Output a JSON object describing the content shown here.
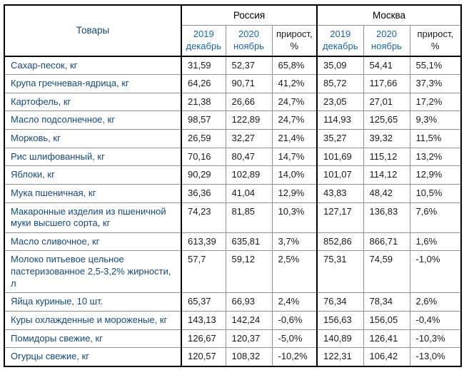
{
  "colors": {
    "product_text_blue": "#15497e",
    "subheader_blue": "#1c64a7",
    "number_text": "#1a1a1a",
    "border_dark": "#000000",
    "border_light": "#919191",
    "background": "#ffffff"
  },
  "chart_data": {
    "type": "table",
    "header": {
      "products_label": "Товары",
      "groups": [
        {
          "label": "Россия",
          "columns": [
            {
              "line1": "2019",
              "line2": "декабрь"
            },
            {
              "line1": "2020",
              "line2": "ноябрь"
            },
            {
              "line1": "прирост,",
              "line2": "%"
            }
          ]
        },
        {
          "label": "Москва",
          "columns": [
            {
              "line1": "2019",
              "line2": "декабрь"
            },
            {
              "line1": "2020",
              "line2": "ноябрь"
            },
            {
              "line1": "прирост,",
              "line2": "%"
            }
          ]
        }
      ]
    },
    "rows": [
      {
        "name": "Сахар-песок, кг",
        "ru_2019": "31,59",
        "ru_2020": "52,37",
        "ru_growth": "65,8%",
        "msk_2019": "35,09",
        "msk_2020": "54,41",
        "msk_growth": "55,1%"
      },
      {
        "name": "Крупа гречневая-ядрица, кг",
        "ru_2019": "64,26",
        "ru_2020": "90,71",
        "ru_growth": "41,2%",
        "msk_2019": "85,72",
        "msk_2020": "117,66",
        "msk_growth": "37,3%"
      },
      {
        "name": "Картофель, кг",
        "ru_2019": "21,38",
        "ru_2020": "26,66",
        "ru_growth": "24,7%",
        "msk_2019": "23,05",
        "msk_2020": "27,01",
        "msk_growth": "17,2%"
      },
      {
        "name": "Масло подсолнечное, кг",
        "ru_2019": "98,57",
        "ru_2020": "122,89",
        "ru_growth": "24,7%",
        "msk_2019": "114,93",
        "msk_2020": "125,65",
        "msk_growth": "9,3%"
      },
      {
        "name": "Морковь, кг",
        "ru_2019": "26,59",
        "ru_2020": "32,27",
        "ru_growth": "21,4%",
        "msk_2019": "35,27",
        "msk_2020": "39,32",
        "msk_growth": "11,5%"
      },
      {
        "name": "Рис шлифованный, кг",
        "ru_2019": "70,16",
        "ru_2020": "80,47",
        "ru_growth": "14,7%",
        "msk_2019": "101,69",
        "msk_2020": "115,12",
        "msk_growth": "13,2%"
      },
      {
        "name": "Яблоки, кг",
        "ru_2019": "90,29",
        "ru_2020": "102,89",
        "ru_growth": "14,0%",
        "msk_2019": "101,07",
        "msk_2020": "114,12",
        "msk_growth": "12,9%"
      },
      {
        "name": "Мука пшеничная, кг",
        "ru_2019": "36,36",
        "ru_2020": "41,04",
        "ru_growth": "12,9%",
        "msk_2019": "43,83",
        "msk_2020": "48,42",
        "msk_growth": "10,5%"
      },
      {
        "name": "Макаронные изделия из пшеничной муки высшего сорта, кг",
        "ru_2019": "74,23",
        "ru_2020": "81,85",
        "ru_growth": "10,3%",
        "msk_2019": "127,17",
        "msk_2020": "136,83",
        "msk_growth": "7,6%"
      },
      {
        "name": "Масло сливочное, кг",
        "ru_2019": "613,39",
        "ru_2020": "635,81",
        "ru_growth": "3,7%",
        "msk_2019": "852,86",
        "msk_2020": "866,71",
        "msk_growth": "1,6%"
      },
      {
        "name": "Молоко питьевое цельное пастеризованное 2,5-3,2% жирности, л",
        "ru_2019": "57,7",
        "ru_2020": "59,12",
        "ru_growth": "2,5%",
        "msk_2019": "75,31",
        "msk_2020": "74,59",
        "msk_growth": "-1,0%"
      },
      {
        "name": "Яйца куриные, 10 шт.",
        "ru_2019": "65,37",
        "ru_2020": "66,93",
        "ru_growth": "2,4%",
        "msk_2019": "76,34",
        "msk_2020": "78,34",
        "msk_growth": "2,6%"
      },
      {
        "name": "Куры охлажденные и мороженые, кг",
        "ru_2019": "143,13",
        "ru_2020": "142,24",
        "ru_growth": "-0,6%",
        "msk_2019": "156,63",
        "msk_2020": "156,05",
        "msk_growth": "-0,4%"
      },
      {
        "name": "Помидоры свежие, кг",
        "ru_2019": "126,67",
        "ru_2020": "120,37",
        "ru_growth": "-5,0%",
        "msk_2019": "140,89",
        "msk_2020": "126,41",
        "msk_growth": "-10,3%"
      },
      {
        "name": "Огурцы свежие, кг",
        "ru_2019": "120,57",
        "ru_2020": "108,32",
        "ru_growth": "-10,2%",
        "msk_2019": "122,31",
        "msk_2020": "106,42",
        "msk_growth": "-13,0%"
      }
    ]
  }
}
